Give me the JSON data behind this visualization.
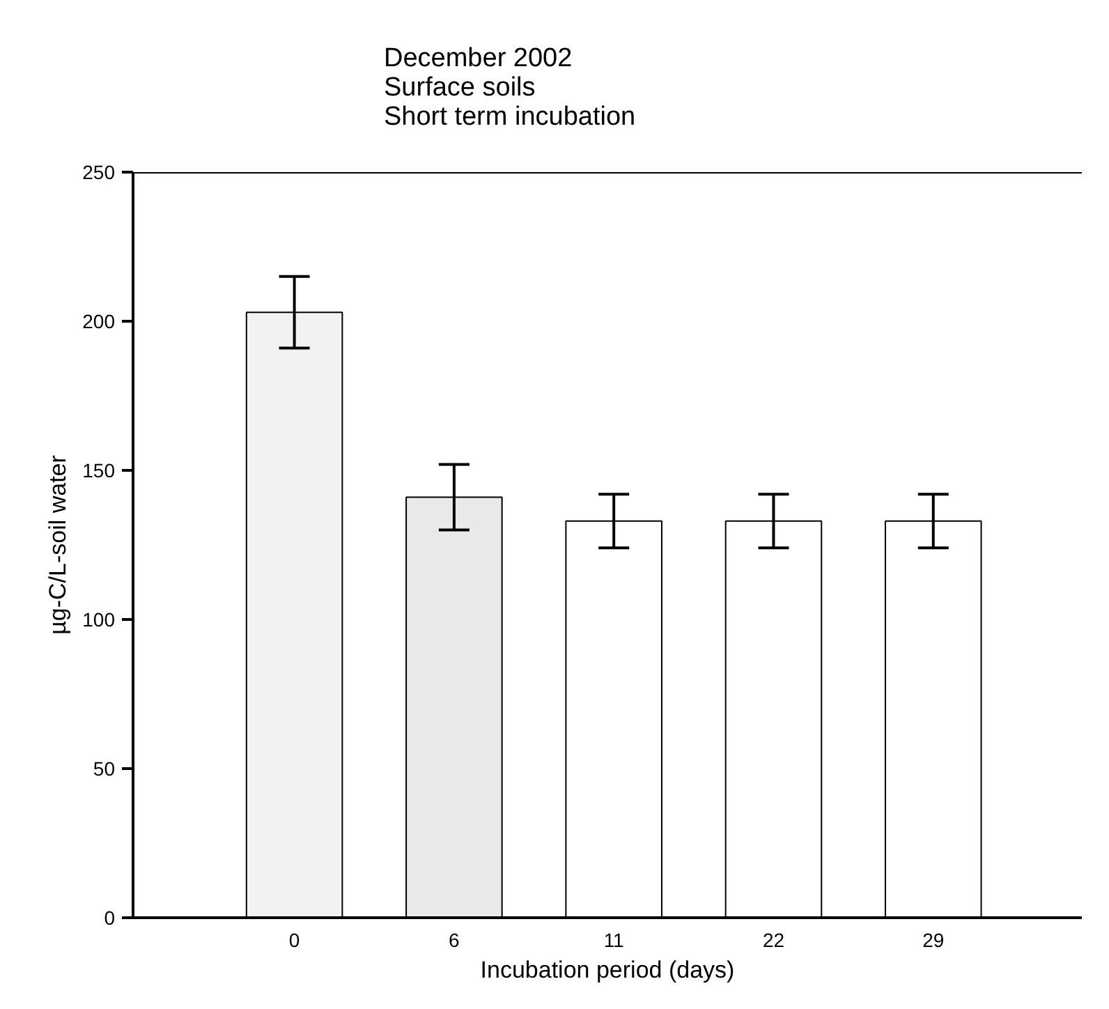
{
  "chart_data": {
    "type": "bar",
    "title": "December 2002\nSurface soils\nShort term incubation",
    "xlabel": "Incubation period (days)",
    "ylabel": "µg-C/L-soil water",
    "categories": [
      "0",
      "6",
      "11",
      "22",
      "29"
    ],
    "values": [
      203,
      141,
      133,
      133,
      133
    ],
    "errors": [
      12,
      11,
      9,
      9,
      9
    ],
    "colors": [
      "#f2f2f2",
      "#e9e9e9",
      "#ffffff",
      "#ffffff",
      "#ffffff"
    ],
    "ylim": [
      0,
      250
    ],
    "yticks": [
      0,
      50,
      100,
      150,
      200,
      250
    ],
    "grid": false
  }
}
